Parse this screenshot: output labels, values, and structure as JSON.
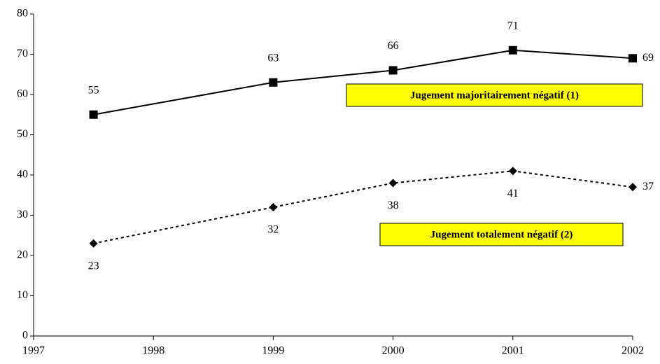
{
  "chart_data": {
    "type": "line",
    "x": [
      1997.5,
      1999,
      2000,
      2001,
      2002
    ],
    "series": [
      {
        "name": "Jugement majoritairement négatif (1)",
        "color": "#000000",
        "dash": false,
        "marker": "square",
        "values": [
          55,
          63,
          66,
          71,
          69
        ]
      },
      {
        "name": "Jugement totalement négatif (2)",
        "color": "#000000",
        "dash": true,
        "marker": "diamond",
        "values": [
          23,
          32,
          38,
          41,
          37
        ]
      }
    ],
    "legend_color": "#ffff00",
    "xlim": [
      1997,
      2002
    ],
    "xticks": [
      1997,
      1998,
      1999,
      2000,
      2001,
      2002
    ],
    "ylim": [
      0,
      80
    ],
    "yticks": [
      0,
      10,
      20,
      30,
      40,
      50,
      60,
      70,
      80
    ],
    "grid": false
  }
}
